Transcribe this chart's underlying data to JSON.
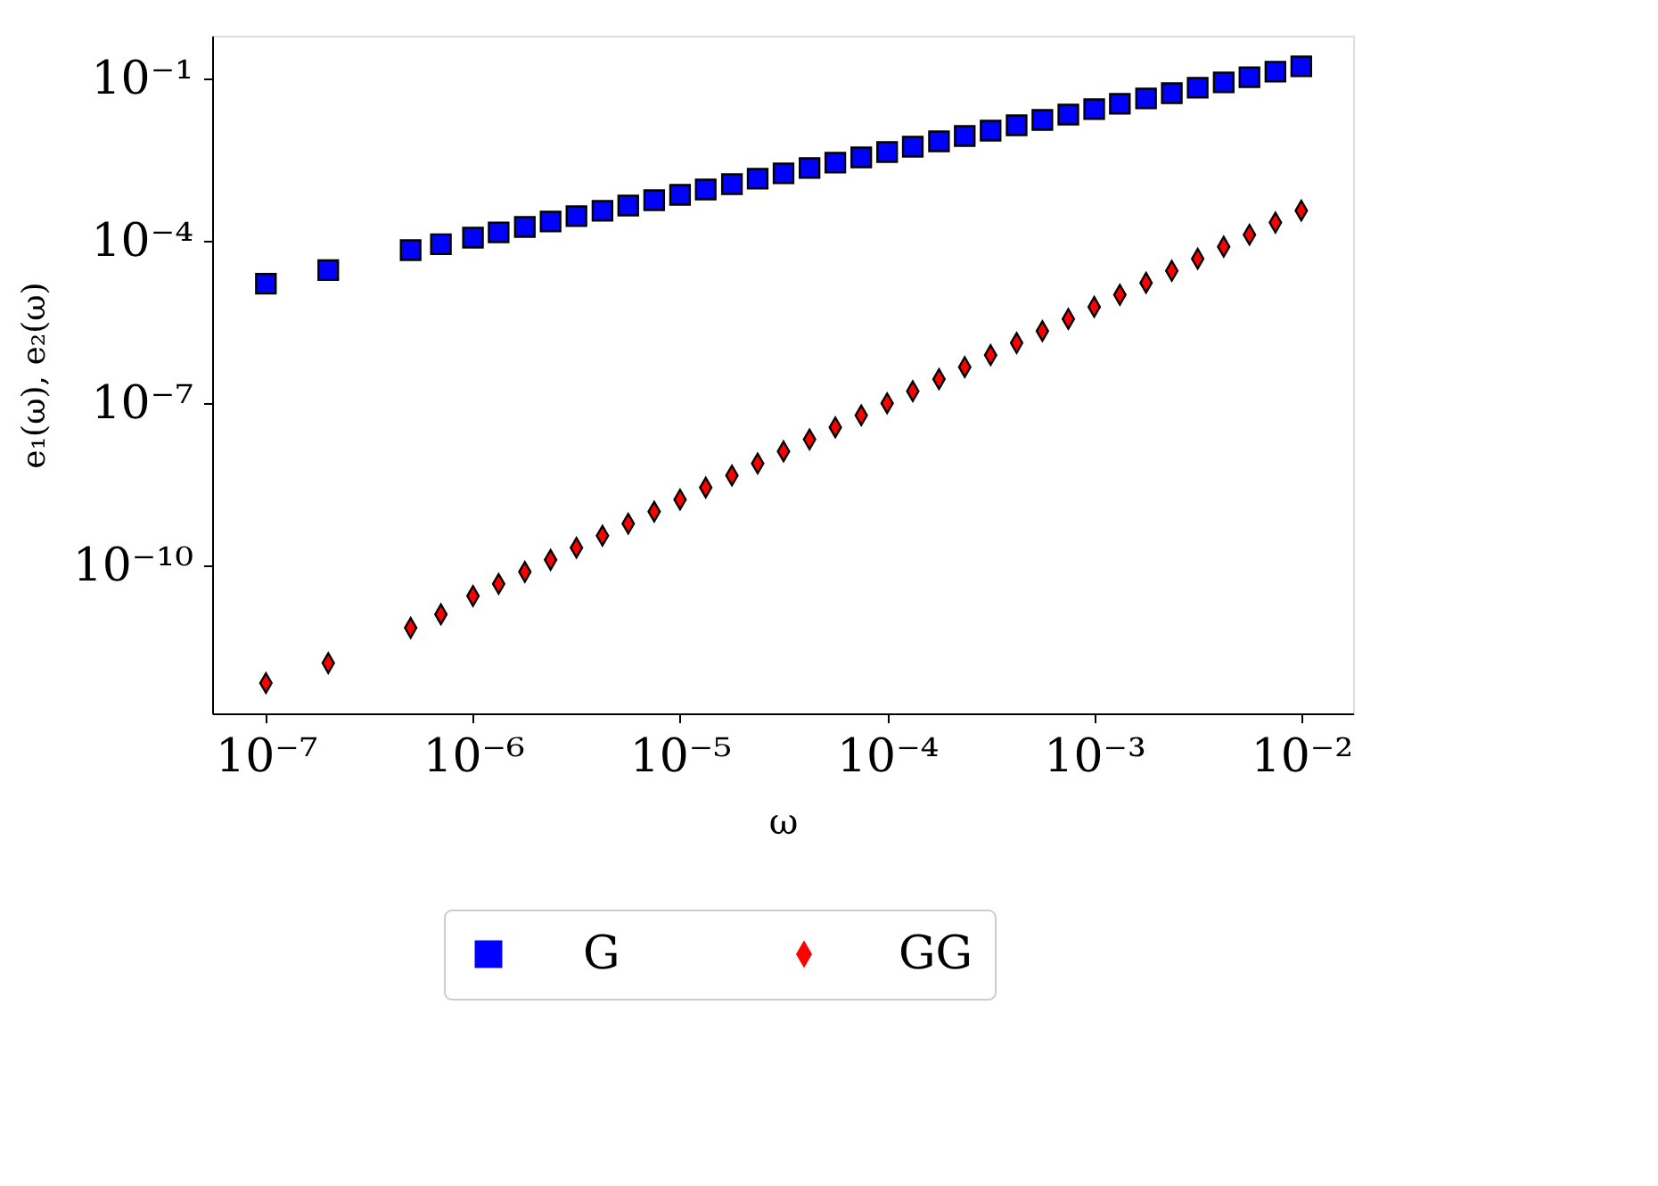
{
  "chart_data": {
    "type": "scatter",
    "xlabel": "ω",
    "ylabel": "e₁(ω), e₂(ω)",
    "log": "xy",
    "grid": false,
    "legend": "bottom",
    "xlim": [
      5.5e-08,
      0.0178
    ],
    "ylim": [
      1.86e-13,
      0.62
    ],
    "xticks": [
      {
        "value": 1e-07,
        "label": "10⁻⁷"
      },
      {
        "value": 1e-06,
        "label": "10⁻⁶"
      },
      {
        "value": 1e-05,
        "label": "10⁻⁵"
      },
      {
        "value": 0.0001,
        "label": "10⁻⁴"
      },
      {
        "value": 0.001,
        "label": "10⁻³"
      },
      {
        "value": 0.01,
        "label": "10⁻²"
      }
    ],
    "yticks": [
      {
        "value": 1e-10,
        "label": "10⁻¹⁰"
      },
      {
        "value": 1e-07,
        "label": "10⁻⁷"
      },
      {
        "value": 0.0001,
        "label": "10⁻⁴"
      },
      {
        "value": 0.1,
        "label": "10⁻¹"
      }
    ],
    "x": [
      1e-07,
      2e-07,
      5e-07,
      7e-07,
      1e-06,
      1.33e-06,
      1.78e-06,
      2.37e-06,
      3.16e-06,
      4.22e-06,
      5.62e-06,
      7.5e-06,
      1e-05,
      1.33e-05,
      1.78e-05,
      2.37e-05,
      3.16e-05,
      4.22e-05,
      5.62e-05,
      7.5e-05,
      0.0001,
      0.000133,
      0.000178,
      0.000237,
      0.000316,
      0.000422,
      0.000562,
      0.00075,
      0.001,
      0.00133,
      0.00178,
      0.00237,
      0.00316,
      0.00422,
      0.00562,
      0.0075,
      0.01
    ],
    "series": [
      {
        "name": "G",
        "color": "#0000ff",
        "marker": "square",
        "values": [
          1.62e-05,
          2.88e-05,
          6.76e-05,
          8.71e-05,
          0.000115,
          0.000144,
          0.000181,
          0.000228,
          0.000286,
          0.000359,
          0.00045,
          0.000565,
          0.00071,
          0.000891,
          0.00112,
          0.00141,
          0.00177,
          0.00222,
          0.00279,
          0.00349,
          0.00439,
          0.00551,
          0.00692,
          0.00869,
          0.0109,
          0.0137,
          0.0172,
          0.0216,
          0.0272,
          0.0341,
          0.0428,
          0.0537,
          0.0675,
          0.0847,
          0.106,
          0.134,
          0.168
        ]
      },
      {
        "name": "GG",
        "color": "#ff0000",
        "marker": "diamond",
        "values": [
          6.76e-13,
          1.58e-12,
          7.08e-12,
          1.26e-11,
          2.75e-11,
          4.6e-11,
          7.67e-11,
          1.28e-10,
          2.14e-10,
          3.57e-10,
          5.96e-10,
          9.94e-10,
          1.66e-09,
          2.77e-09,
          4.62e-09,
          7.72e-09,
          1.29e-08,
          2.15e-08,
          3.59e-08,
          5.99e-08,
          1e-07,
          1.67e-07,
          2.79e-07,
          4.65e-07,
          7.76e-07,
          1.3e-06,
          2.16e-06,
          3.61e-06,
          6.03e-06,
          1.01e-05,
          1.68e-05,
          2.8e-05,
          4.68e-05,
          7.81e-05,
          0.00013,
          0.000218,
          0.000363
        ]
      }
    ]
  }
}
